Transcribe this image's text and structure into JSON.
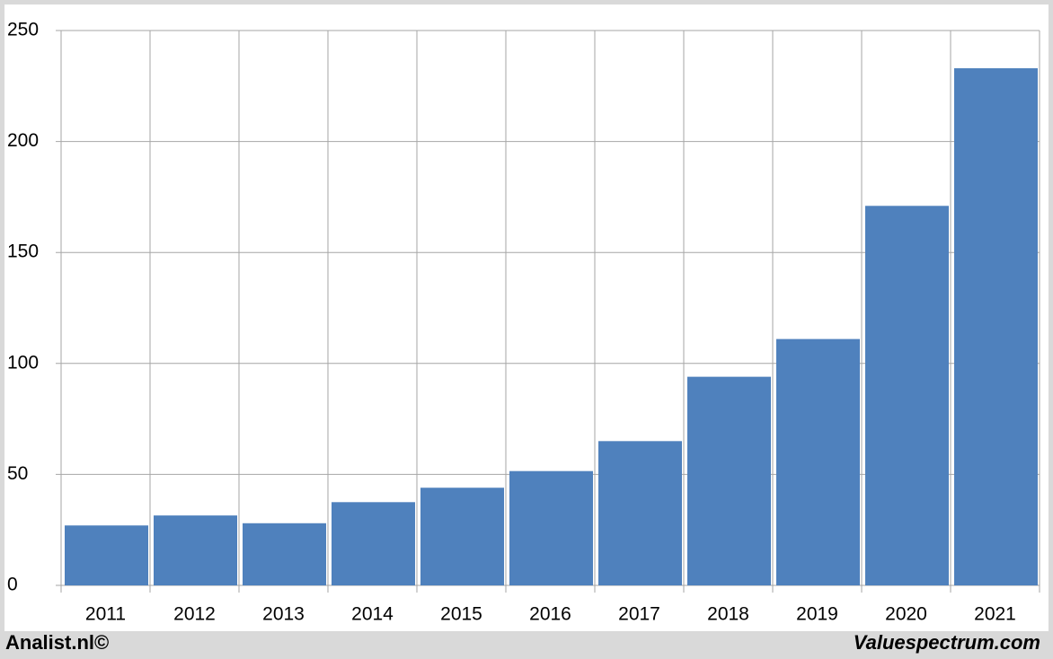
{
  "chart_data": {
    "type": "bar",
    "categories": [
      "2011",
      "2012",
      "2013",
      "2014",
      "2015",
      "2016",
      "2017",
      "2018",
      "2019",
      "2020",
      "2021"
    ],
    "values": [
      27,
      31.5,
      28,
      37.5,
      44,
      51.5,
      65,
      94,
      111,
      171,
      233
    ],
    "color": "#4f81bd",
    "ylim": [
      0,
      250
    ],
    "yticks": [
      0,
      50,
      100,
      150,
      200,
      250
    ],
    "grid": true,
    "footer_left": "Analist.nl©",
    "footer_right": "Valuespectrum.com"
  }
}
